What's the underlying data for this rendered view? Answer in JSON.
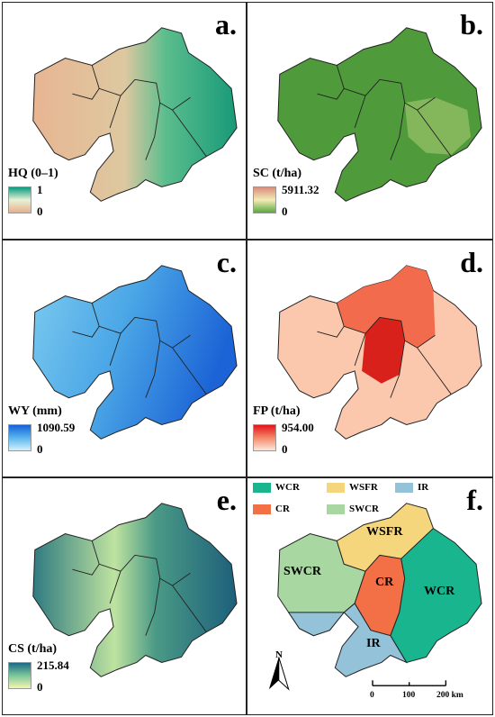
{
  "panels": [
    {
      "letter": "a.",
      "legend_title": "HQ (0–1)",
      "max": "1",
      "min": "0",
      "color_high": "#0a9a7e",
      "color_mid": "#e8f1d8",
      "color_low": "#e7b08a"
    },
    {
      "letter": "b.",
      "legend_title": "SC (t/ha)",
      "max": "5911.32",
      "min": "0",
      "color_high": "#d98d7c",
      "color_mid": "#f3ecb6",
      "color_low": "#5aa83f"
    },
    {
      "letter": "c.",
      "legend_title": "WY (mm)",
      "max": "1090.59",
      "min": "0",
      "color_high": "#1560d8",
      "color_mid": "#59b6ee",
      "color_low": "#d3f0fb"
    },
    {
      "letter": "d.",
      "legend_title": "FP (t/ha)",
      "max": "954.00",
      "min": "0",
      "color_high": "#e3151a",
      "color_mid": "#f4886a",
      "color_low": "#fde8db"
    },
    {
      "letter": "e.",
      "legend_title": "CS (t/ha)",
      "max": "215.84",
      "min": "0",
      "color_high": "#1b6a86",
      "color_mid": "#7dc69a",
      "color_low": "#f2f6b0"
    },
    {
      "letter": "f."
    }
  ],
  "zones": {
    "legend": [
      {
        "code": "WCR",
        "color": "#19b58e"
      },
      {
        "code": "WSFR",
        "color": "#f6d67d"
      },
      {
        "code": "IR",
        "color": "#93c2d9"
      },
      {
        "code": "CR",
        "color": "#f36f45"
      },
      {
        "code": "SWCR",
        "color": "#a8d7a2"
      }
    ],
    "labels": {
      "wsfr": "WSFR",
      "swcr": "SWCR",
      "cr": "CR",
      "wcr": "WCR",
      "ir": "IR"
    },
    "north": "N",
    "scale_ticks": [
      "0",
      "100",
      "200 km"
    ]
  }
}
